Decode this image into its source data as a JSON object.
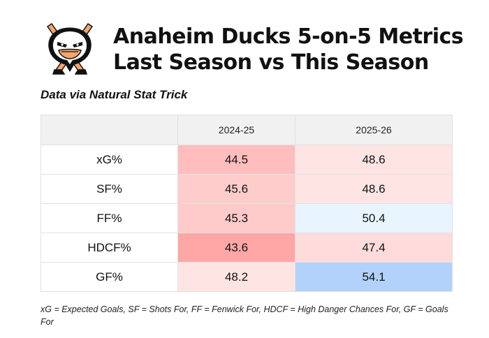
{
  "header": {
    "logo_name": "anaheim-ducks-logo",
    "title_line1": "Anaheim Ducks 5-on-5 Metrics",
    "title_line2": "Last Season vs This Season"
  },
  "source": "Data via Natural Stat Trick",
  "table": {
    "columns": [
      "",
      "2024-25",
      "2025-26"
    ],
    "rows": [
      {
        "metric": "xG%",
        "values": [
          "44.5",
          "48.6"
        ],
        "colors": [
          "#ffbdbd",
          "#ffe4e4"
        ]
      },
      {
        "metric": "SF%",
        "values": [
          "45.6",
          "48.6"
        ],
        "colors": [
          "#ffcccc",
          "#ffe4e4"
        ]
      },
      {
        "metric": "FF%",
        "values": [
          "45.3",
          "50.4"
        ],
        "colors": [
          "#ffcaca",
          "#e9f5fe"
        ]
      },
      {
        "metric": "HDCF%",
        "values": [
          "43.6",
          "47.4"
        ],
        "colors": [
          "#ffa6a6",
          "#ffdbdb"
        ]
      },
      {
        "metric": "GF%",
        "values": [
          "48.2",
          "54.1"
        ],
        "colors": [
          "#ffe4e4",
          "#b2d2fb"
        ]
      }
    ]
  },
  "footnote": "xG = Expected Goals, SF = Shots For, FF = Fenwick For, HDCF = High Danger Chances For, GF = Goals For"
}
